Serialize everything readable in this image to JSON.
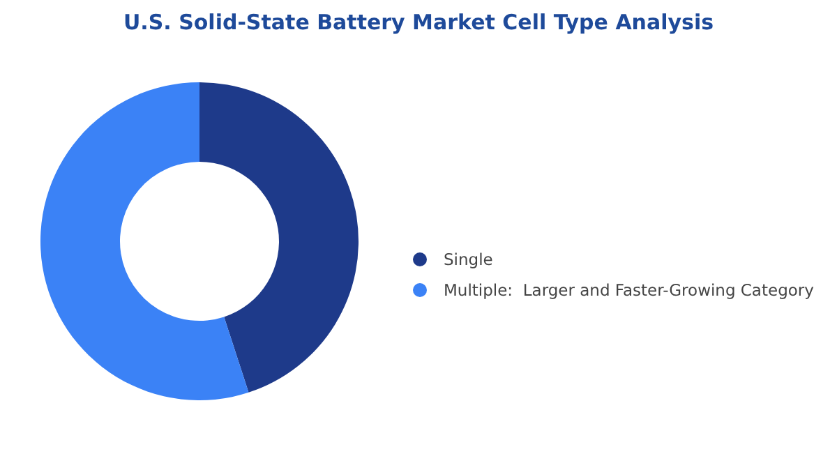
{
  "chart_data": {
    "type": "donut",
    "title": "U.S. Solid-State Battery Market Cell Type Analysis",
    "categories": [
      "Single",
      "Multiple:  Larger and Faster-Growing Category"
    ],
    "values": [
      45,
      55
    ],
    "colors": [
      "#1e3a8a",
      "#3b82f6"
    ],
    "legend": "right"
  }
}
